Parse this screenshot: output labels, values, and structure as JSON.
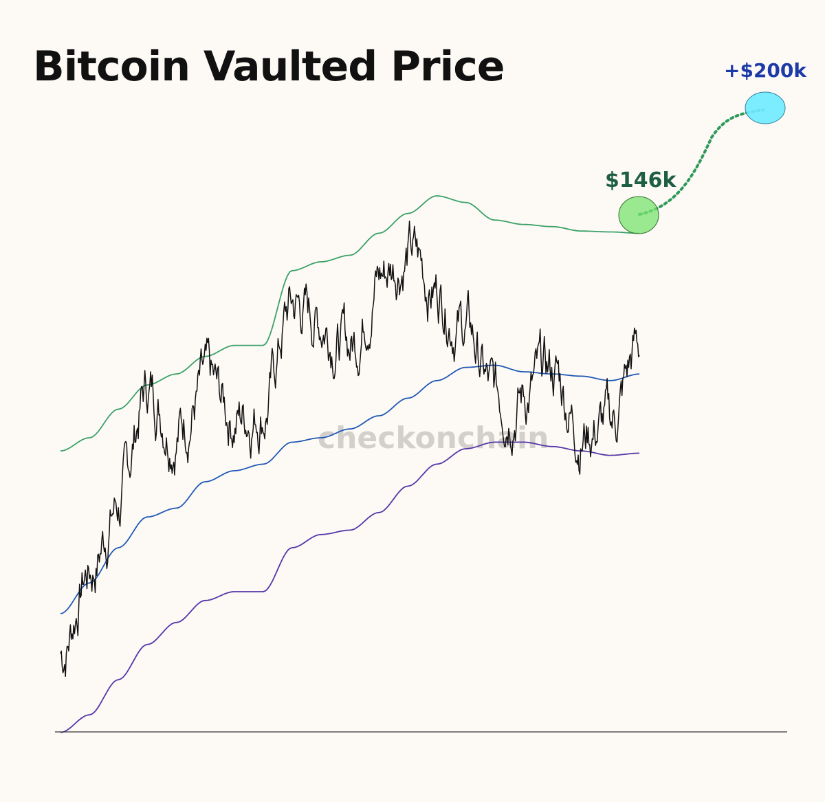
{
  "chart_data": {
    "type": "line",
    "title": "Bitcoin Vaulted Price",
    "watermark": "checkonchain",
    "grid": false,
    "x": [
      0,
      0.05,
      0.1,
      0.15,
      0.2,
      0.25,
      0.3,
      0.35,
      0.4,
      0.45,
      0.5,
      0.55,
      0.6,
      0.65,
      0.7,
      0.75,
      0.8,
      0.85,
      0.9,
      0.95,
      1.0
    ],
    "series": [
      {
        "key": "upper_band",
        "color": "#3aa067",
        "values": [
          0.42,
          0.45,
          0.515,
          0.57,
          0.595,
          0.635,
          0.66,
          0.66,
          0.83,
          0.85,
          0.865,
          0.915,
          0.96,
          1.0,
          0.985,
          0.945,
          0.935,
          0.93,
          0.92,
          0.918,
          0.915
        ]
      },
      {
        "key": "vaulted_price",
        "color": "#1f58b5",
        "values": [
          0.05,
          0.12,
          0.2,
          0.27,
          0.29,
          0.35,
          0.375,
          0.39,
          0.44,
          0.45,
          0.47,
          0.5,
          0.54,
          0.58,
          0.61,
          0.615,
          0.6,
          0.595,
          0.59,
          0.58,
          0.595
        ]
      },
      {
        "key": "lower_band",
        "color": "#5535a8",
        "values": [
          -0.22,
          -0.18,
          -0.1,
          -0.02,
          0.03,
          0.08,
          0.1,
          0.1,
          0.2,
          0.23,
          0.24,
          0.28,
          0.34,
          0.39,
          0.425,
          0.44,
          0.44,
          0.43,
          0.42,
          0.41,
          0.415
        ]
      },
      {
        "key": "price",
        "color": "#111111",
        "values": [
          -0.04,
          0.15,
          0.3,
          0.56,
          0.48,
          0.56,
          0.5,
          0.52,
          0.75,
          0.72,
          0.66,
          0.82,
          0.87,
          0.79,
          0.7,
          0.54,
          0.55,
          0.6,
          0.47,
          0.48,
          0.66
        ]
      }
    ],
    "annotations": [
      {
        "key": "target_146",
        "label": "$146k",
        "color": "#1e5e43"
      },
      {
        "key": "target_200",
        "label": "+$200k",
        "color": "#1c3aa8"
      }
    ]
  }
}
